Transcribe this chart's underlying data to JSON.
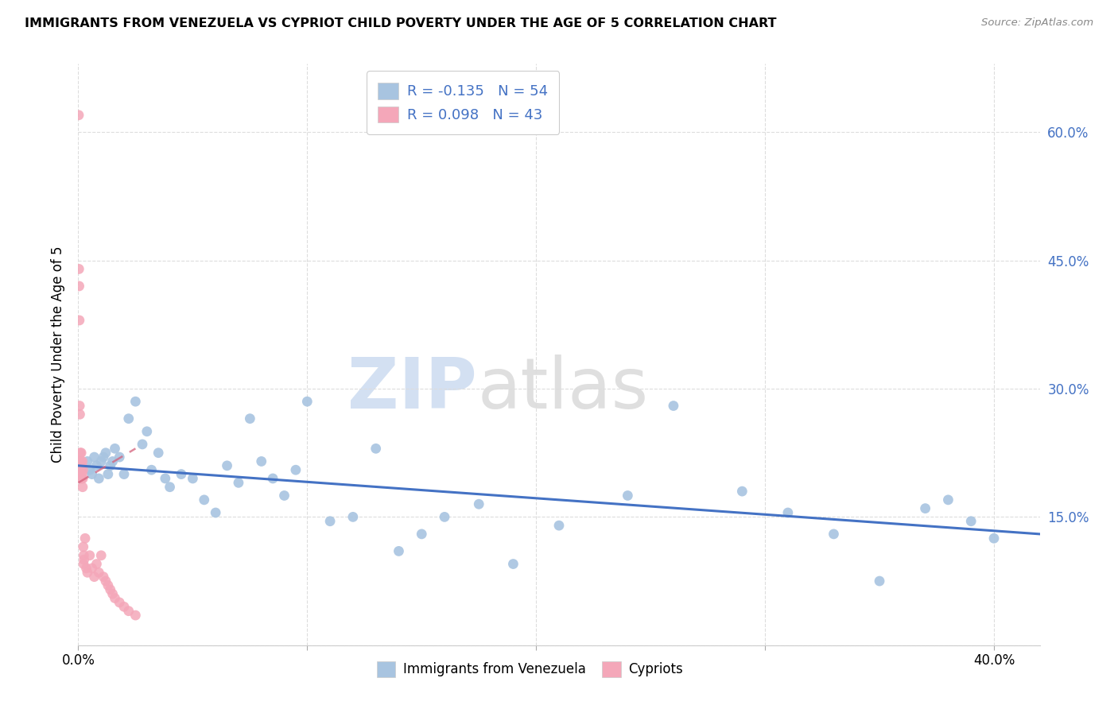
{
  "title": "IMMIGRANTS FROM VENEZUELA VS CYPRIOT CHILD POVERTY UNDER THE AGE OF 5 CORRELATION CHART",
  "source": "Source: ZipAtlas.com",
  "ylabel": "Child Poverty Under the Age of 5",
  "legend_blue_r": "R = -0.135",
  "legend_blue_n": "N = 54",
  "legend_pink_r": "R = 0.098",
  "legend_pink_n": "N = 43",
  "legend_blue_label": "Immigrants from Venezuela",
  "legend_pink_label": "Cypriots",
  "yticks": [
    0.0,
    0.15,
    0.3,
    0.45,
    0.6
  ],
  "ytick_labels": [
    "",
    "15.0%",
    "30.0%",
    "45.0%",
    "60.0%"
  ],
  "xticks": [
    0.0,
    0.1,
    0.2,
    0.3,
    0.4
  ],
  "xmin": 0.0,
  "xmax": 0.42,
  "ymin": 0.0,
  "ymax": 0.68,
  "blue_color": "#a8c4e0",
  "pink_color": "#f4a7b9",
  "trend_blue_color": "#4472c4",
  "trend_pink_color": "#d4607a",
  "blue_points_x": [
    0.004,
    0.005,
    0.006,
    0.007,
    0.008,
    0.009,
    0.01,
    0.011,
    0.012,
    0.013,
    0.014,
    0.015,
    0.016,
    0.018,
    0.02,
    0.022,
    0.025,
    0.028,
    0.03,
    0.032,
    0.035,
    0.038,
    0.04,
    0.045,
    0.05,
    0.055,
    0.06,
    0.065,
    0.07,
    0.075,
    0.08,
    0.085,
    0.09,
    0.095,
    0.1,
    0.11,
    0.12,
    0.13,
    0.14,
    0.15,
    0.16,
    0.175,
    0.19,
    0.21,
    0.24,
    0.26,
    0.29,
    0.31,
    0.33,
    0.35,
    0.37,
    0.38,
    0.39,
    0.4
  ],
  "blue_points_y": [
    0.215,
    0.205,
    0.2,
    0.22,
    0.21,
    0.195,
    0.215,
    0.22,
    0.225,
    0.2,
    0.21,
    0.215,
    0.23,
    0.22,
    0.2,
    0.265,
    0.285,
    0.235,
    0.25,
    0.205,
    0.225,
    0.195,
    0.185,
    0.2,
    0.195,
    0.17,
    0.155,
    0.21,
    0.19,
    0.265,
    0.215,
    0.195,
    0.175,
    0.205,
    0.285,
    0.145,
    0.15,
    0.23,
    0.11,
    0.13,
    0.15,
    0.165,
    0.095,
    0.14,
    0.175,
    0.28,
    0.18,
    0.155,
    0.13,
    0.075,
    0.16,
    0.17,
    0.145,
    0.125
  ],
  "pink_points_x": [
    0.0002,
    0.0003,
    0.0004,
    0.0005,
    0.0006,
    0.0007,
    0.0008,
    0.0009,
    0.001,
    0.0011,
    0.0012,
    0.0013,
    0.0014,
    0.0015,
    0.0016,
    0.0017,
    0.0018,
    0.0019,
    0.002,
    0.0021,
    0.0022,
    0.0023,
    0.0024,
    0.0025,
    0.003,
    0.0035,
    0.004,
    0.005,
    0.006,
    0.007,
    0.008,
    0.009,
    0.01,
    0.011,
    0.012,
    0.013,
    0.014,
    0.015,
    0.016,
    0.018,
    0.02,
    0.022,
    0.025
  ],
  "pink_points_y": [
    0.62,
    0.44,
    0.42,
    0.38,
    0.28,
    0.27,
    0.215,
    0.225,
    0.205,
    0.215,
    0.195,
    0.225,
    0.21,
    0.195,
    0.21,
    0.2,
    0.215,
    0.185,
    0.195,
    0.205,
    0.115,
    0.095,
    0.105,
    0.1,
    0.125,
    0.09,
    0.085,
    0.105,
    0.09,
    0.08,
    0.095,
    0.085,
    0.105,
    0.08,
    0.075,
    0.07,
    0.065,
    0.06,
    0.055,
    0.05,
    0.045,
    0.04,
    0.035
  ],
  "blue_trend_x": [
    0.0,
    0.42
  ],
  "blue_trend_y": [
    0.21,
    0.13
  ],
  "pink_trend_x": [
    0.0,
    0.025
  ],
  "pink_trend_y": [
    0.19,
    0.23
  ],
  "watermark_zip": "ZIP",
  "watermark_atlas": "atlas",
  "marker_size": 85
}
